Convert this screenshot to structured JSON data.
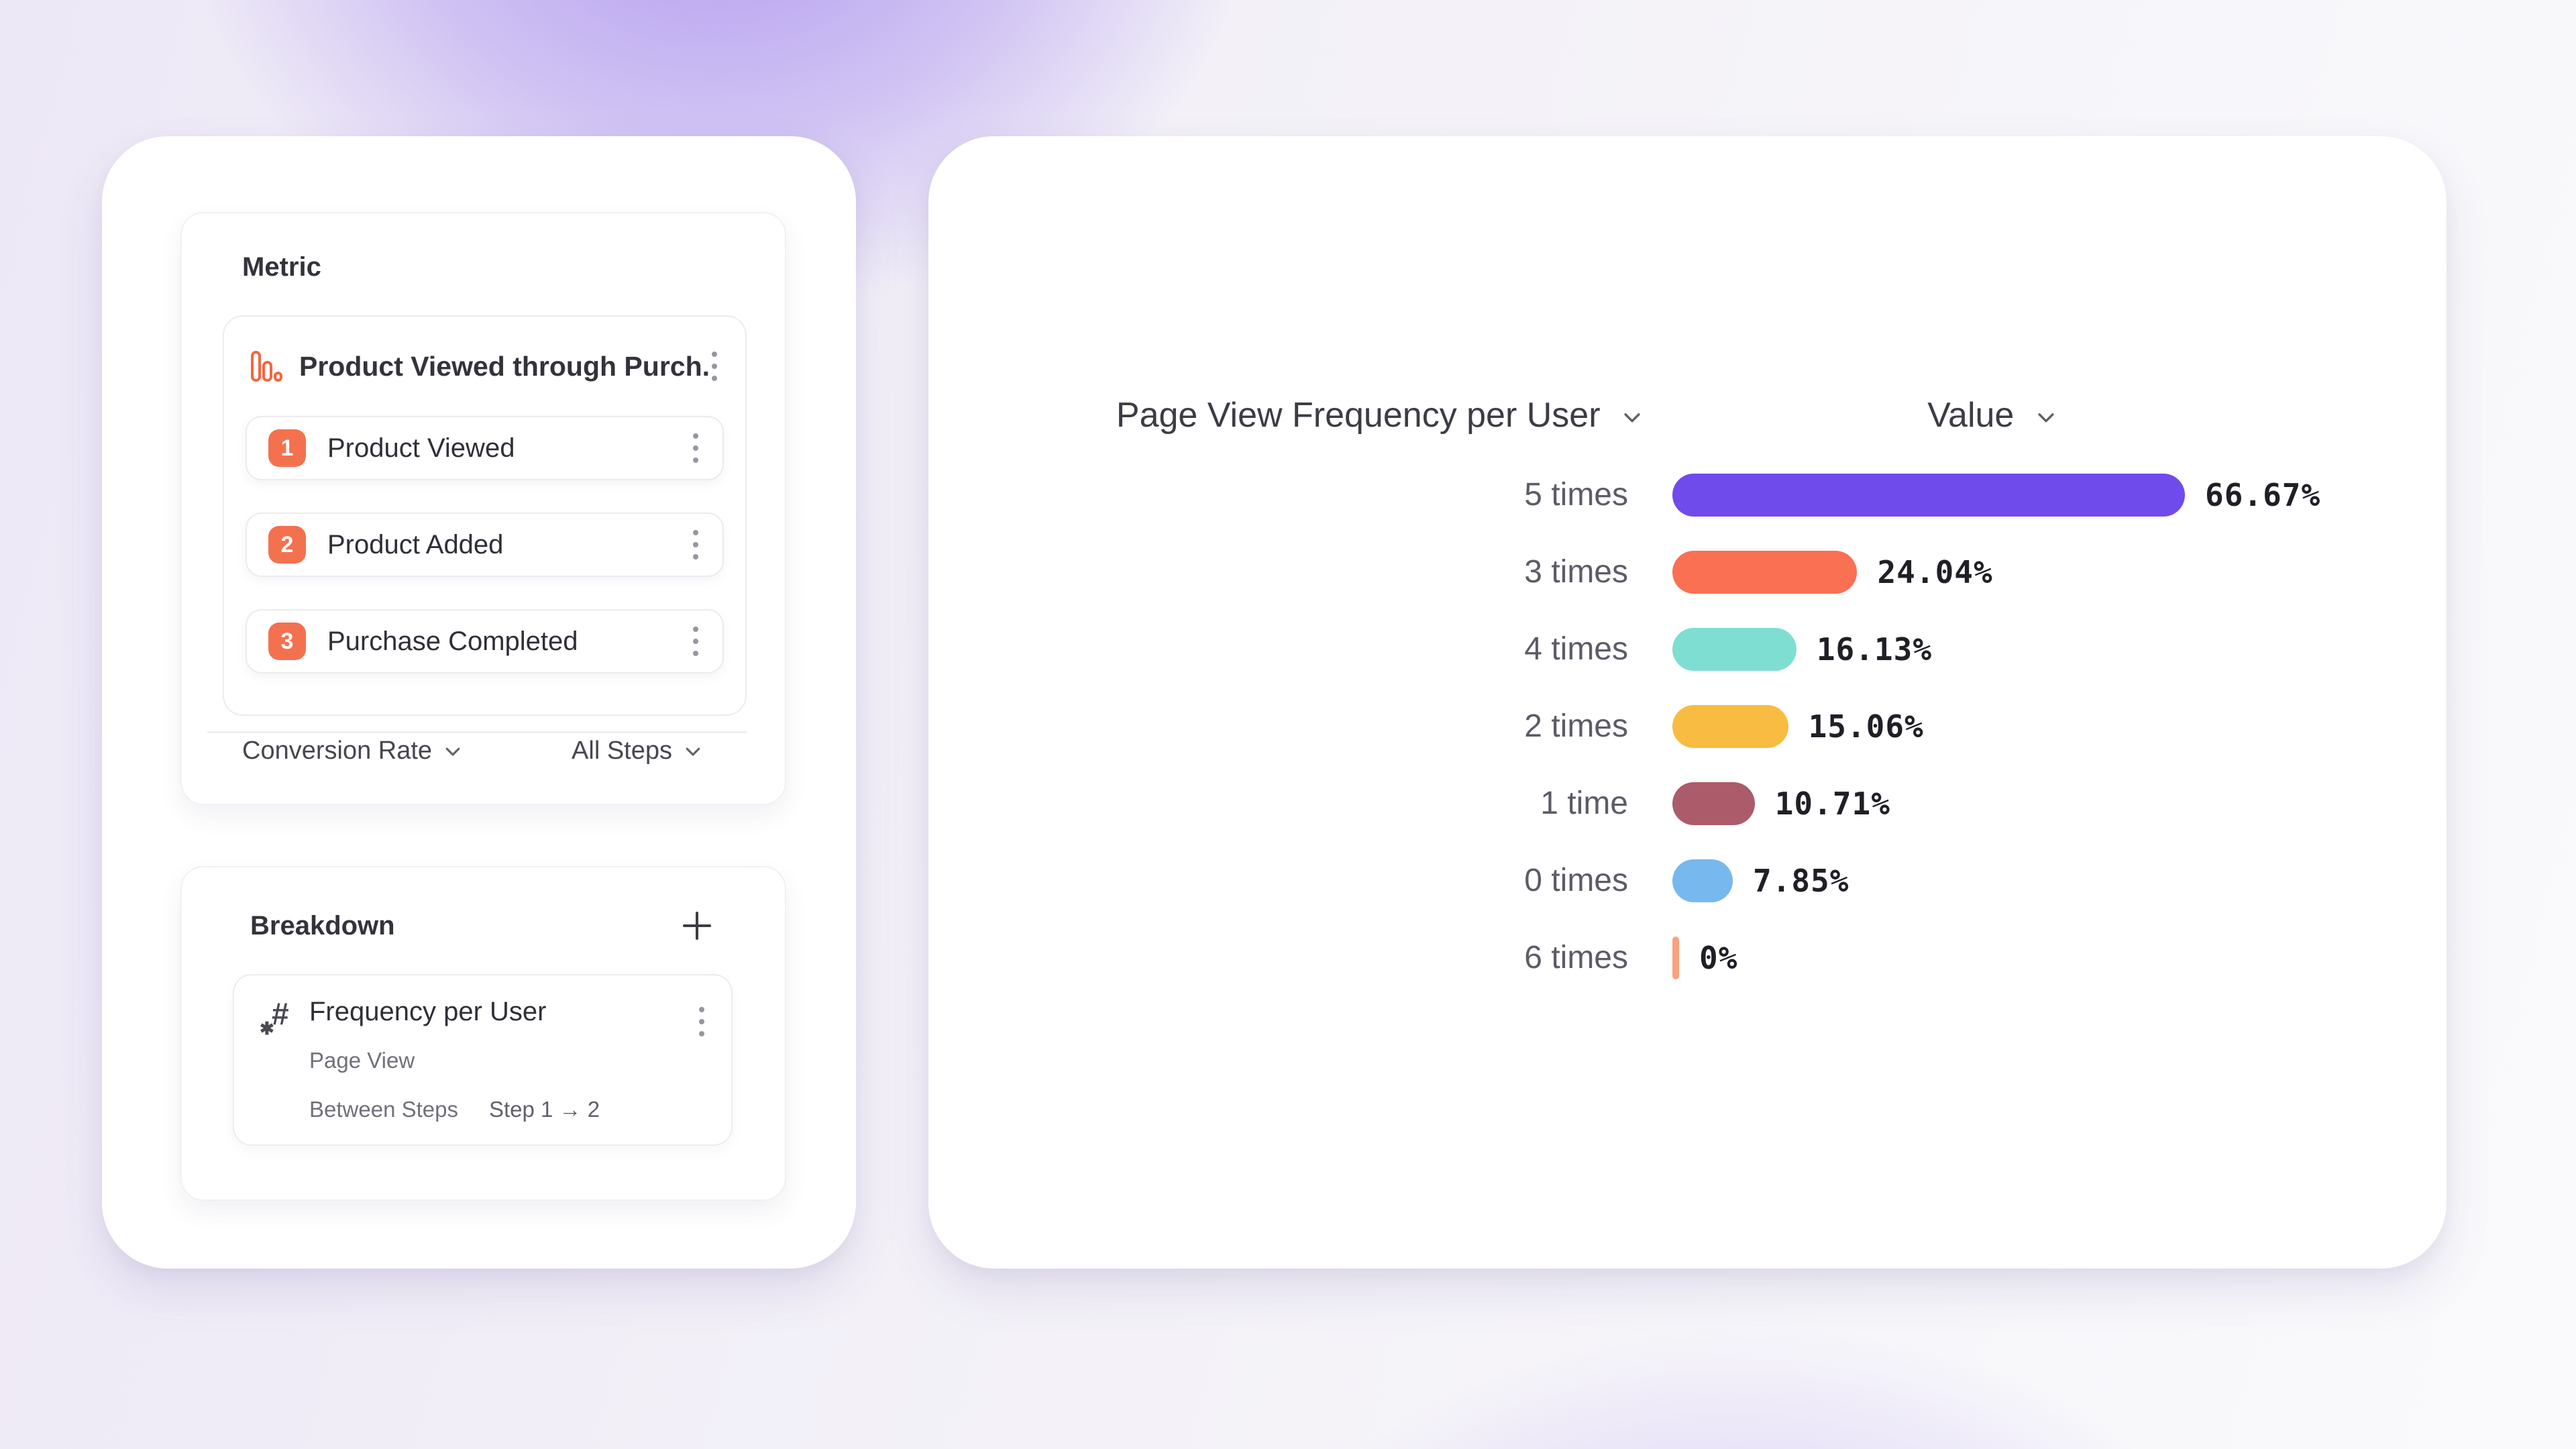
{
  "metric_panel": {
    "title": "Metric",
    "funnel": {
      "title": "Product Viewed through Purch...",
      "steps": [
        {
          "number": "1",
          "label": "Product Viewed"
        },
        {
          "number": "2",
          "label": "Product Added"
        },
        {
          "number": "3",
          "label": "Purchase Completed"
        }
      ]
    },
    "footer": {
      "metric_dropdown": "Conversion Rate",
      "steps_dropdown": "All Steps"
    }
  },
  "breakdown_panel": {
    "title": "Breakdown",
    "item": {
      "title": "Frequency per User",
      "event": "Page View",
      "scope_label": "Between Steps",
      "scope_value": "Step 1 → 2"
    }
  },
  "chart_data": {
    "type": "bar",
    "orientation": "horizontal",
    "title": "Page View Frequency per User",
    "value_column_label": "Value",
    "categories": [
      "5 times",
      "3 times",
      "4 times",
      "2 times",
      "1 time",
      "0 times",
      "6 times"
    ],
    "values": [
      66.67,
      24.04,
      16.13,
      15.06,
      10.71,
      7.85,
      0
    ],
    "value_labels": [
      "66.67%",
      "24.04%",
      "16.13%",
      "15.06%",
      "10.71%",
      "7.85%",
      "0%"
    ],
    "bar_colors": [
      "#6F4BEC",
      "#FA7053",
      "#7FDED2",
      "#F8BC42",
      "#AC5B6B",
      "#77B9EF",
      "#FAA27E"
    ],
    "unit": "%",
    "xlim": [
      0,
      100
    ],
    "grid": false,
    "legend": false,
    "sort": "descending"
  },
  "colors": {
    "accent_orange": "#F4714F",
    "card_background": "#FFFFFF",
    "row_label_gray": "#5C5C66",
    "value_text": "#1F1F26"
  }
}
